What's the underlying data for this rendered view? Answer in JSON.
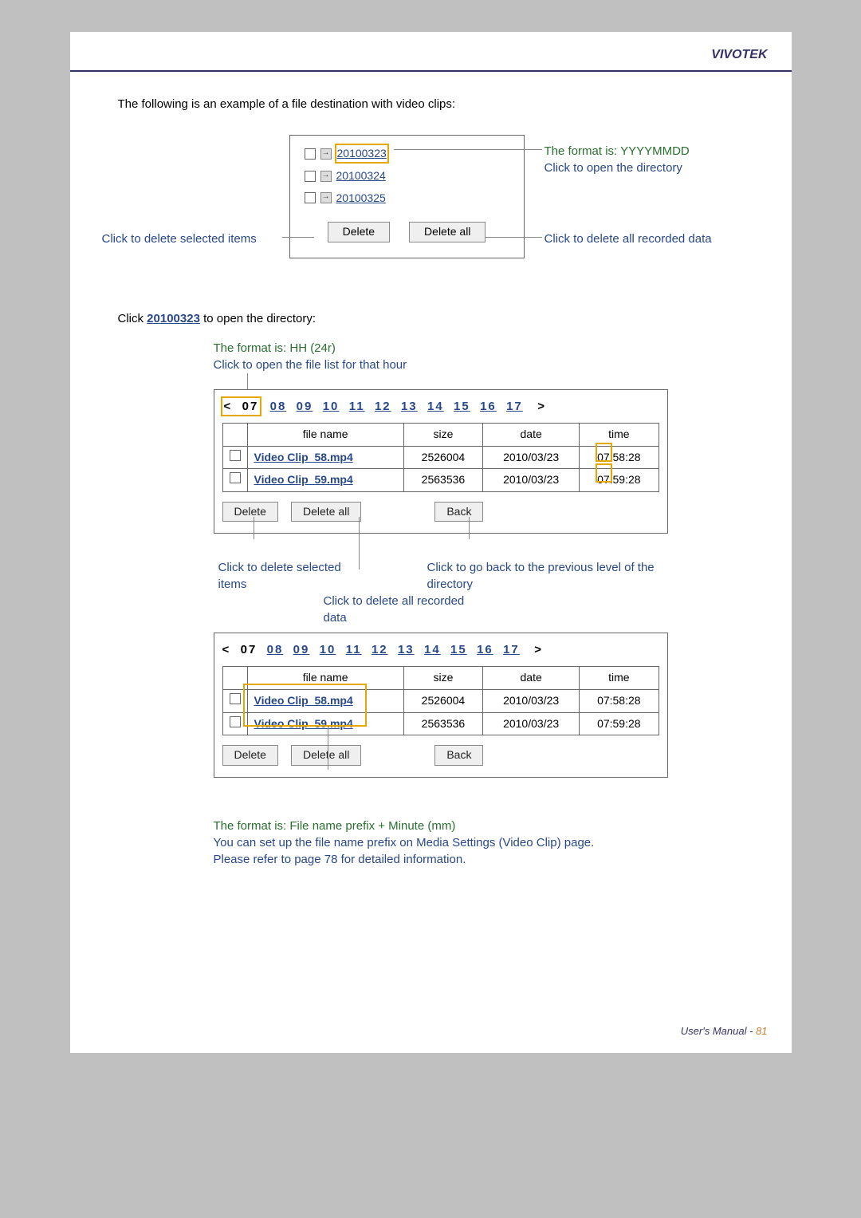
{
  "header": {
    "brand": "VIVOTEK"
  },
  "intro": "The following is an example of a file destination with video clips:",
  "dates": {
    "items": [
      {
        "label": "20100323",
        "highlighted": true
      },
      {
        "label": "20100324",
        "highlighted": false
      },
      {
        "label": "20100325",
        "highlighted": false
      }
    ],
    "delete_btn": "Delete",
    "delete_all_btn": "Delete all"
  },
  "callouts1": {
    "right1_line1": "The format is: YYYYMMDD",
    "right1_line2": "Click to open the directory",
    "right2": "Click to delete all recorded data",
    "left1": "Click to delete selected items"
  },
  "click_dir": {
    "prefix": "Click ",
    "link": "20100323",
    "suffix": " to open the directory:"
  },
  "hour_heading": {
    "green": "The format is: HH (24r)",
    "blue": "Click to open the file list for that hour"
  },
  "hour_bar": {
    "prev": "<",
    "next": ">",
    "current": "07",
    "hours": [
      "08",
      "09",
      "10",
      "11",
      "12",
      "13",
      "14",
      "15",
      "16",
      "17"
    ]
  },
  "table_headers": {
    "chk": "",
    "name": "file name",
    "size": "size",
    "date": "date",
    "time": "time"
  },
  "table1": {
    "rows": [
      {
        "name": "Video Clip_58.mp4",
        "size": "2526004",
        "date": "2010/03/23",
        "time": "07:58:28",
        "hl_minute": "58"
      },
      {
        "name": "Video Clip_59.mp4",
        "size": "2563536",
        "date": "2010/03/23",
        "time": "07:59:28",
        "hl_minute": "59"
      }
    ],
    "delete_btn": "Delete",
    "delete_all_btn": "Delete all",
    "back_btn": "Back"
  },
  "table2": {
    "rows": [
      {
        "name": "Video Clip_58.mp4",
        "size": "2526004",
        "date": "2010/03/23",
        "time": "07:58:28"
      },
      {
        "name": "Video Clip_59.mp4",
        "size": "2563536",
        "date": "2010/03/23",
        "time": "07:59:28"
      }
    ],
    "delete_btn": "Delete",
    "delete_all_btn": "Delete all",
    "back_btn": "Back"
  },
  "callouts2": {
    "left": "Click to delete selected items",
    "mid": "Click to delete all recorded data",
    "right": "Click to go back to the previous level of the directory"
  },
  "footnote": {
    "green": "The format is: File name prefix + Minute (mm)",
    "blue1": "You can set up the file name prefix on Media Settings (Video Clip) page.",
    "blue2": "Please refer to page 78 for detailed information."
  },
  "footer": {
    "label": "User's Manual - ",
    "page": "81"
  },
  "colors": {
    "green": "#2a6f30",
    "blue": "#28488a",
    "highlight": "#e6a800",
    "headerText": "#333366",
    "pageNum": "#c08030"
  }
}
